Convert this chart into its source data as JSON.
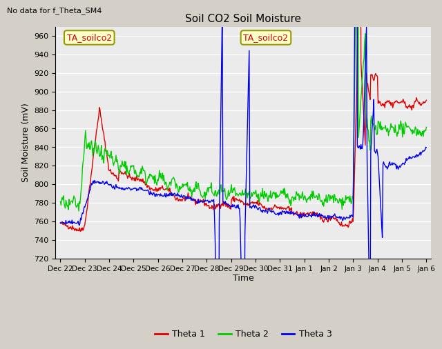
{
  "title": "Soil CO2 Soil Moisture",
  "top_left_text": "No data for f_Theta_SM4",
  "box_label": "TA_soilco2",
  "ylabel": "Soil Moisture (mV)",
  "xlabel": "Time",
  "ylim": [
    720,
    970
  ],
  "yticks": [
    720,
    740,
    760,
    780,
    800,
    820,
    840,
    860,
    880,
    900,
    920,
    940,
    960
  ],
  "background_color": "#e8e8e8",
  "plot_bg_color": "#ebebeb",
  "grid_color": "#ffffff",
  "line_colors": {
    "theta1": "#dd0000",
    "theta2": "#00cc00",
    "theta3": "#0000ee"
  },
  "legend_labels": [
    "Theta 1",
    "Theta 2",
    "Theta 3"
  ],
  "x_tick_labels": [
    "Dec 22",
    "Dec 23",
    "Dec 24",
    "Dec 25",
    "Dec 26",
    "Dec 27",
    "Dec 28",
    "Dec 29",
    "Dec 30",
    "Dec 31",
    "Jan 1",
    "Jan 2",
    "Jan 3",
    "Jan 4",
    "Jan 5",
    "Jan 6"
  ],
  "num_points": 600
}
